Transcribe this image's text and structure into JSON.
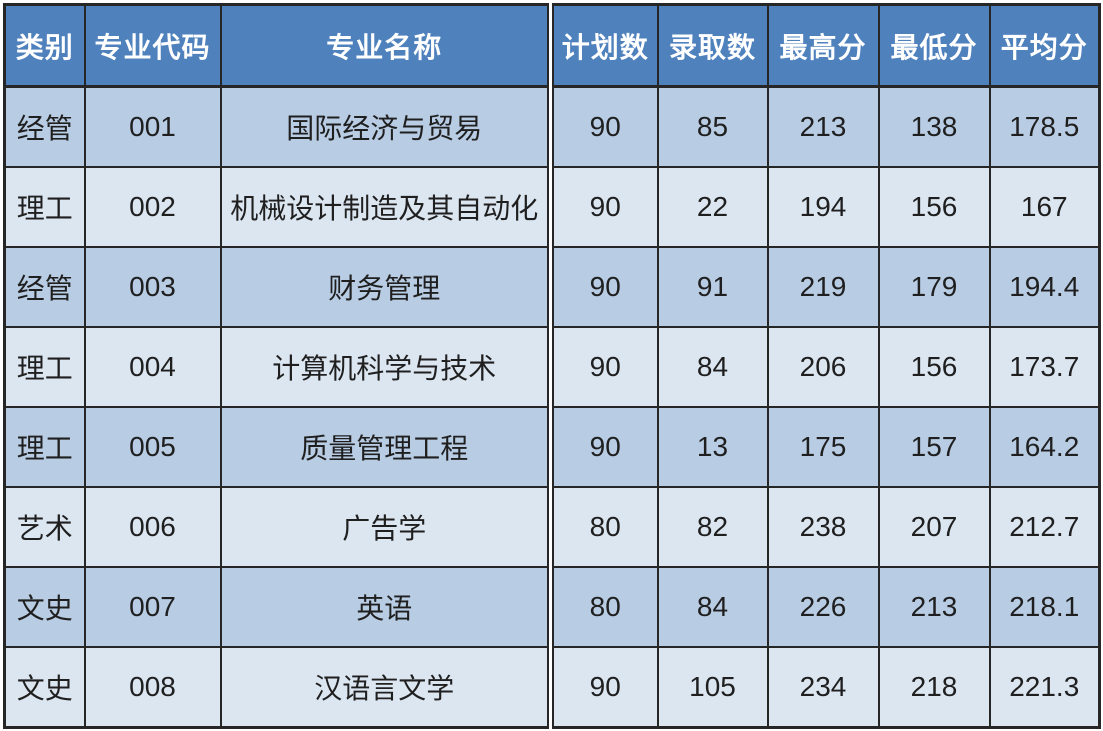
{
  "chart_data": {
    "type": "table",
    "title": "",
    "columns": [
      "类别",
      "专业代码",
      "专业名称",
      "计划数",
      "录取数",
      "最高分",
      "最低分",
      "平均分"
    ],
    "rows": [
      [
        "经管",
        "001",
        "国际经济与贸易",
        "90",
        "85",
        "213",
        "138",
        "178.5"
      ],
      [
        "理工",
        "002",
        "机械设计制造及其自动化",
        "90",
        "22",
        "194",
        "156",
        "167"
      ],
      [
        "经管",
        "003",
        "财务管理",
        "90",
        "91",
        "219",
        "179",
        "194.4"
      ],
      [
        "理工",
        "004",
        "计算机科学与技术",
        "90",
        "84",
        "206",
        "156",
        "173.7"
      ],
      [
        "理工",
        "005",
        "质量管理工程",
        "90",
        "13",
        "175",
        "157",
        "164.2"
      ],
      [
        "艺术",
        "006",
        "广告学",
        "80",
        "82",
        "238",
        "207",
        "212.7"
      ],
      [
        "文史",
        "007",
        "英语",
        "80",
        "84",
        "226",
        "213",
        "218.1"
      ],
      [
        "文史",
        "008",
        "汉语言文学",
        "90",
        "105",
        "234",
        "218",
        "221.3"
      ]
    ],
    "layout": {
      "striped": true,
      "stripe_order": "odd-dark",
      "section_break_after_column": 2
    }
  },
  "colors": {
    "header_bg": "#4f81bd",
    "header_text": "#ffffff",
    "row_odd_bg": "#b8cce4",
    "row_even_bg": "#dce6f1",
    "border": "#262626",
    "body_text": "#1f1f1f",
    "page_bg": "#ffffff"
  }
}
